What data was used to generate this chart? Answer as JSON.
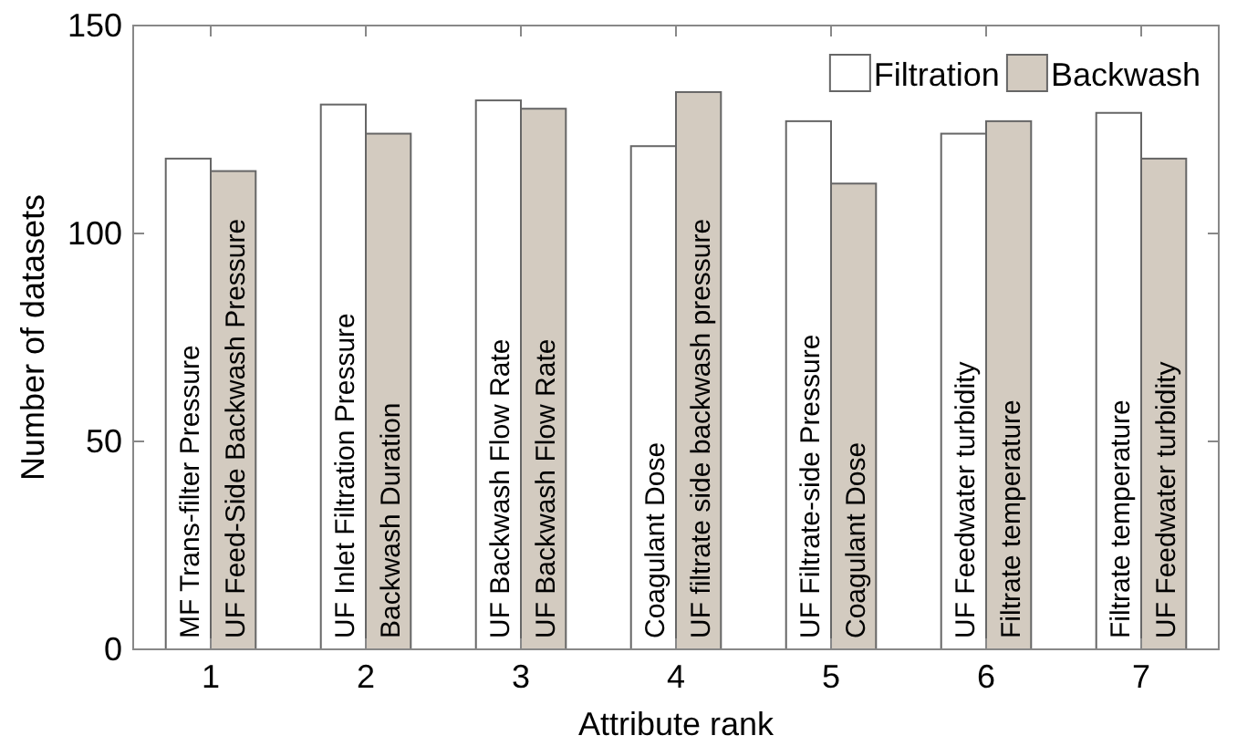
{
  "chart_data": {
    "type": "bar",
    "xlabel": "Attribute rank",
    "ylabel": "Number of datasets",
    "categories": [
      "1",
      "2",
      "3",
      "4",
      "5",
      "6",
      "7"
    ],
    "series": [
      {
        "name": "Filtration",
        "color": "#ffffff",
        "values": [
          118,
          131,
          132,
          121,
          127,
          124,
          129
        ]
      },
      {
        "name": "Backwash",
        "color": "#d3cbc0",
        "values": [
          115,
          124,
          130,
          134,
          112,
          127,
          118
        ]
      }
    ],
    "ylim": [
      0,
      150
    ],
    "yticks": [
      0,
      50,
      100,
      150
    ],
    "grid": false,
    "legend": "top right",
    "annotations": [
      {
        "text": "MF Trans-filter Pressure",
        "x": "1",
        "y": 0
      },
      {
        "text": "UF Feed-Side Backwash Pressure",
        "x": "1",
        "y": 0
      },
      {
        "text": "UF Inlet Filtration Pressure",
        "x": "2",
        "y": 0
      },
      {
        "text": "Backwash Duration",
        "x": "2",
        "y": 0
      },
      {
        "text": "UF Backwash Flow Rate",
        "x": "3",
        "y": 0
      },
      {
        "text": "UF Backwash Flow Rate",
        "x": "3",
        "y": 0
      },
      {
        "text": "Coagulant Dose",
        "x": "4",
        "y": 0
      },
      {
        "text": "UF filtrate side backwash pressure",
        "x": "4",
        "y": 0
      },
      {
        "text": "UF Filtrate-side Pressure",
        "x": "5",
        "y": 0
      },
      {
        "text": "Coagulant Dose",
        "x": "5",
        "y": 0
      },
      {
        "text": "UF Feedwater turbidity",
        "x": "6",
        "y": 0
      },
      {
        "text": "Filtrate temperature",
        "x": "6",
        "y": 0
      },
      {
        "text": "Filtrate temperature",
        "x": "7",
        "y": 0
      },
      {
        "text": "UF Feedwater turbidity",
        "x": "7",
        "y": 0
      }
    ]
  }
}
